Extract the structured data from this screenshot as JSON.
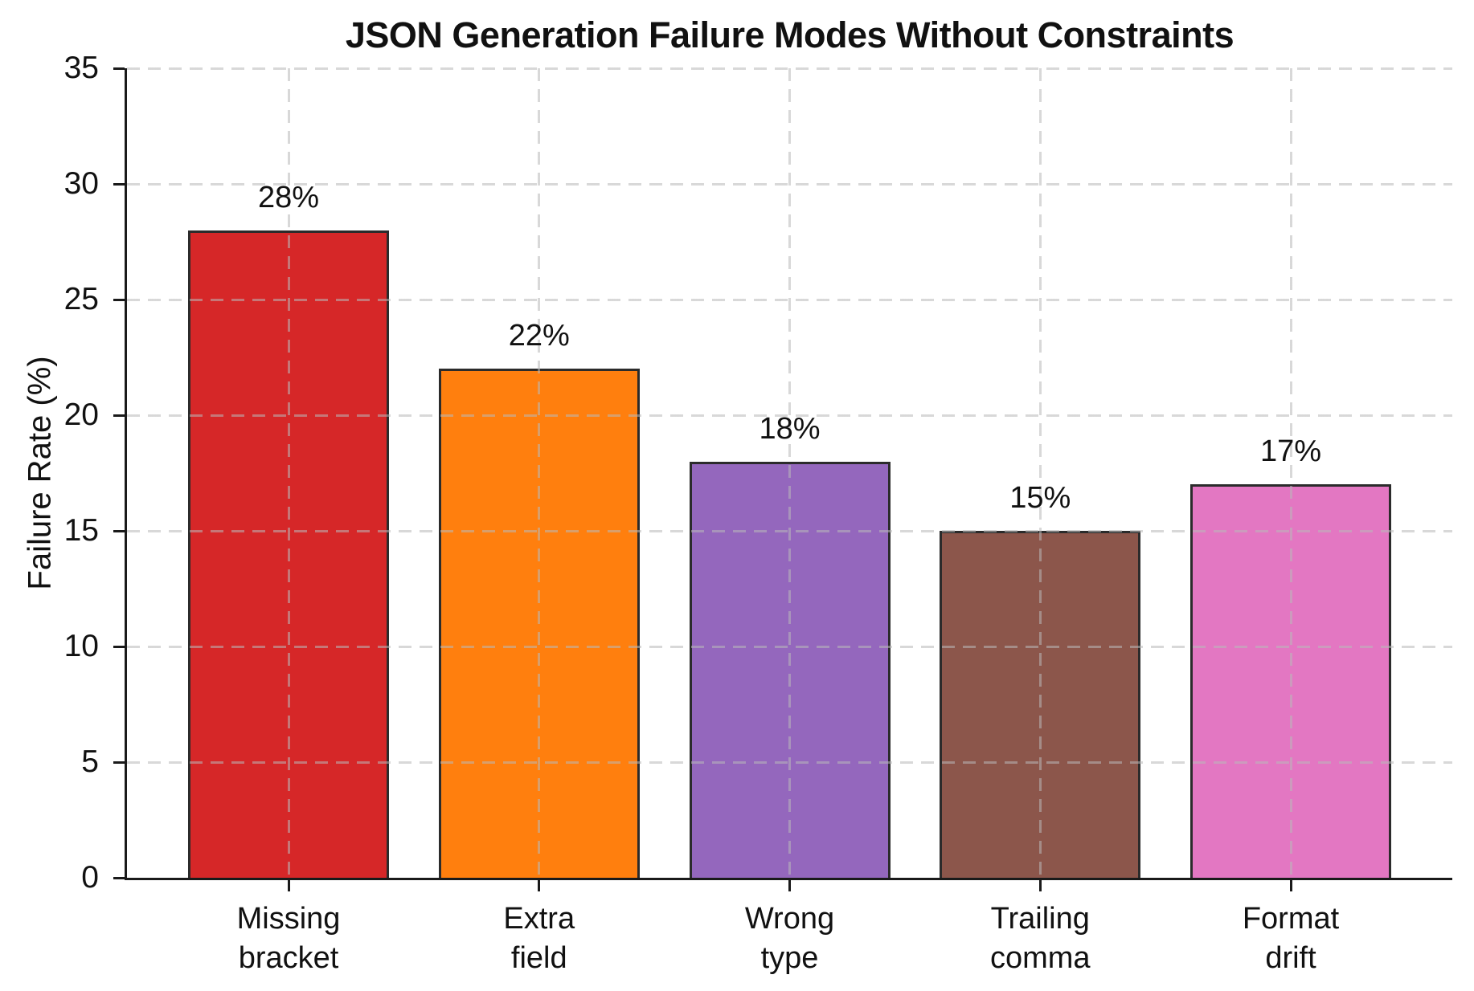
{
  "chart_data": {
    "type": "bar",
    "title": "JSON Generation Failure Modes Without Constraints",
    "ylabel": "Failure Rate (%)",
    "xlabel": "",
    "categories": [
      "Missing\nbracket",
      "Extra\nfield",
      "Wrong\ntype",
      "Trailing\ncomma",
      "Format\ndrift"
    ],
    "values": [
      28,
      22,
      18,
      15,
      17
    ],
    "value_labels": [
      "28%",
      "22%",
      "18%",
      "15%",
      "17%"
    ],
    "bar_colors": [
      "#d62728",
      "#ff7f0e",
      "#9467bd",
      "#8c564b",
      "#e377c2"
    ],
    "bar_edge_color": "#2b2b2b",
    "ylim": [
      0,
      35
    ],
    "yticks": [
      0,
      5,
      10,
      15,
      20,
      25,
      30,
      35
    ],
    "grid": "both-dashed",
    "legend_position": "none",
    "background_color": "#ffffff"
  }
}
